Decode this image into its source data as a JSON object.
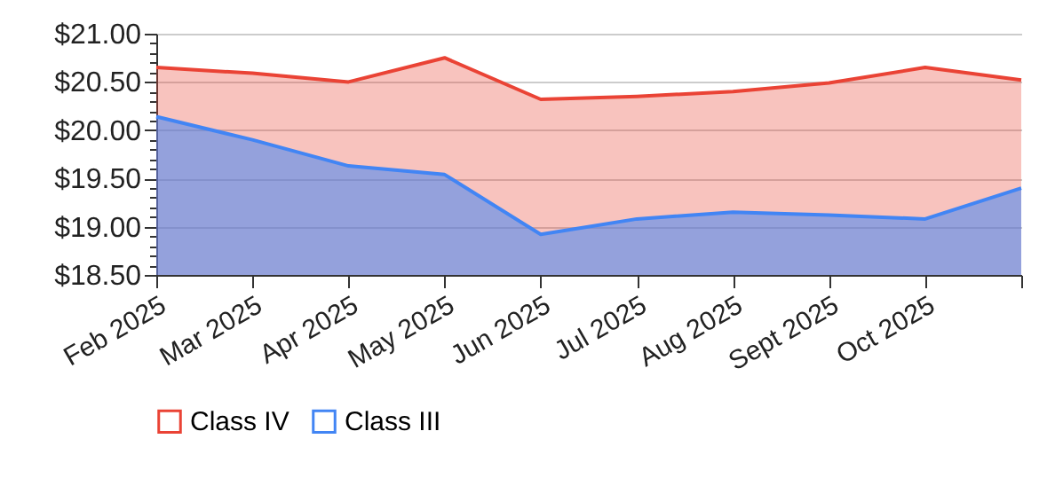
{
  "chart_data": {
    "type": "area",
    "categories": [
      "Feb 2025",
      "Mar 2025",
      "Apr 2025",
      "May 2025",
      "Jun 2025",
      "Jul 2025",
      "Aug 2025",
      "Sept 2025",
      "Oct 2025",
      null
    ],
    "series": [
      {
        "name": "Class IV",
        "color": "#ea4335",
        "values": [
          20.65,
          20.59,
          20.5,
          20.75,
          20.32,
          20.35,
          20.4,
          20.49,
          20.65,
          20.52
        ]
      },
      {
        "name": "Class III",
        "color": "#4285f4",
        "values": [
          20.14,
          19.9,
          19.63,
          19.54,
          18.92,
          19.08,
          19.15,
          19.12,
          19.08,
          19.4
        ]
      }
    ],
    "ylim": [
      18.5,
      21
    ],
    "yticks": [
      {
        "value": 18.5,
        "label": "$18.50"
      },
      {
        "value": 18.6,
        "label": null
      },
      {
        "value": 18.7,
        "label": null
      },
      {
        "value": 18.8,
        "label": null
      },
      {
        "value": 18.9,
        "label": null
      },
      {
        "value": 19,
        "label": "$19.00"
      },
      {
        "value": 19.1,
        "label": null
      },
      {
        "value": 19.2,
        "label": null
      },
      {
        "value": 19.3,
        "label": null
      },
      {
        "value": 19.4,
        "label": null
      },
      {
        "value": 19.5,
        "label": "$19.50"
      },
      {
        "value": 19.6,
        "label": null
      },
      {
        "value": 19.7,
        "label": null
      },
      {
        "value": 19.8,
        "label": null
      },
      {
        "value": 19.9,
        "label": null
      },
      {
        "value": 20,
        "label": "$20.00"
      },
      {
        "value": 20.1,
        "label": null
      },
      {
        "value": 20.2,
        "label": null
      },
      {
        "value": 20.3,
        "label": null
      },
      {
        "value": 20.4,
        "label": null
      },
      {
        "value": 20.5,
        "label": "$20.50"
      },
      {
        "value": 20.6,
        "label": null
      },
      {
        "value": 20.7,
        "label": null
      },
      {
        "value": 20.8,
        "label": null
      },
      {
        "value": 20.9,
        "label": null
      },
      {
        "value": 21,
        "label": "$21.00"
      }
    ],
    "grid": "y",
    "legend": "bottom"
  }
}
